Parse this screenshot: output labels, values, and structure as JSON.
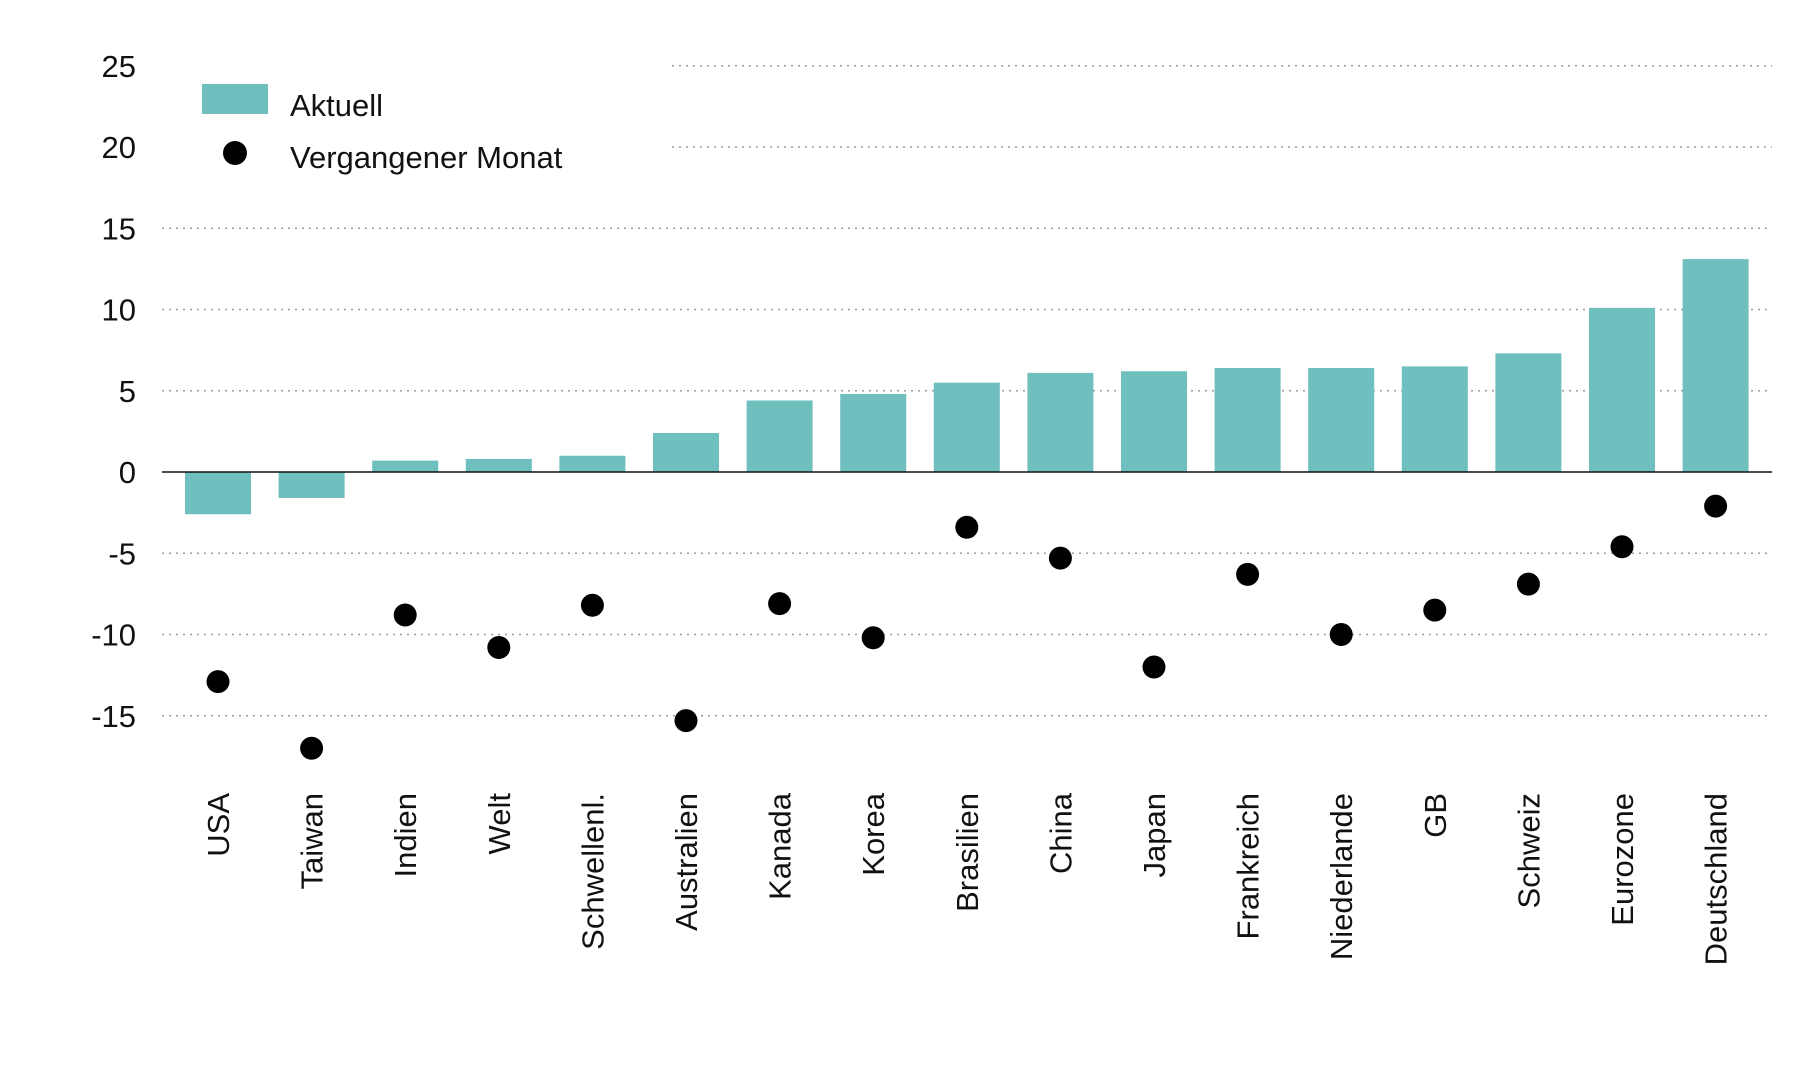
{
  "chart_data": {
    "type": "bar",
    "title": "",
    "xlabel": "",
    "ylabel": "",
    "ylim": [
      -18,
      25
    ],
    "yticks": [
      25,
      20,
      15,
      10,
      5,
      0,
      -5,
      -10,
      -15
    ],
    "grid": true,
    "legend_position": "top-left",
    "colors": {
      "bar": "#6fbfbf",
      "dot": "#000000",
      "text": "#111111",
      "grid": "#9a9a9a"
    },
    "categories": [
      "USA",
      "Taiwan",
      "Indien",
      "Welt",
      "Schwellenl.",
      "Australien",
      "Kanada",
      "Korea",
      "Brasilien",
      "China",
      "Japan",
      "Frankreich",
      "Niederlande",
      "GB",
      "Schweiz",
      "Eurozone",
      "Deutschland"
    ],
    "series": [
      {
        "name": "Aktuell",
        "type": "bar",
        "values": [
          -2.6,
          -1.6,
          0.7,
          0.8,
          1.0,
          2.4,
          4.4,
          4.8,
          5.5,
          6.1,
          6.2,
          6.4,
          6.4,
          6.5,
          7.3,
          10.1,
          13.1
        ]
      },
      {
        "name": "Vergangener Monat",
        "type": "scatter",
        "values": [
          -12.9,
          -17.0,
          -8.8,
          -10.8,
          -8.2,
          -15.3,
          -8.1,
          -10.2,
          -3.4,
          -5.3,
          -12.0,
          -6.3,
          -10.0,
          -8.5,
          -6.9,
          -4.6,
          -2.1
        ]
      }
    ]
  }
}
